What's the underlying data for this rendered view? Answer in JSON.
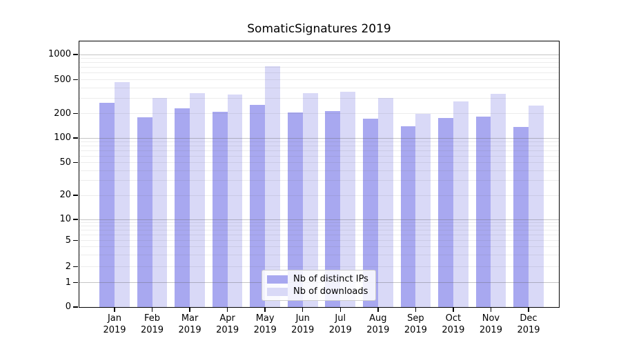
{
  "title": "SomaticSignatures 2019",
  "legend": {
    "ips_label": "Nb of distinct IPs",
    "downloads_label": "Nb of downloads"
  },
  "colors": {
    "ips": "#a8a8f0",
    "downloads": "#d9d9f7",
    "grid_major": "rgba(100,100,100,0.38)",
    "grid_minor": "rgba(100,100,100,0.12)",
    "axis": "#000000",
    "legend_border": "#cccccc"
  },
  "chart_data": {
    "type": "bar",
    "title": "SomaticSignatures 2019",
    "xlabel": "",
    "ylabel": "",
    "categories": [
      "Jan 2019",
      "Feb 2019",
      "Mar 2019",
      "Apr 2019",
      "May 2019",
      "Jun 2019",
      "Jul 2019",
      "Aug 2019",
      "Sep 2019",
      "Oct 2019",
      "Nov 2019",
      "Dec 2019"
    ],
    "series": [
      {
        "name": "Nb of distinct IPs",
        "values": [
          265,
          180,
          230,
          210,
          253,
          205,
          215,
          172,
          140,
          176,
          183,
          138
        ]
      },
      {
        "name": "Nb of downloads",
        "values": [
          465,
          305,
          350,
          335,
          730,
          350,
          360,
          305,
          200,
          275,
          340,
          250
        ]
      }
    ],
    "y_axis": {
      "scale": "log-like (compressed symlog segment below 10, linear 0-1)",
      "ticks": [
        0,
        1,
        2,
        5,
        10,
        20,
        50,
        100,
        200,
        500,
        1000
      ],
      "major_gridlines": [
        1,
        10,
        100,
        1000
      ],
      "minor_gridline_multiples": [
        2,
        3,
        4,
        5,
        6,
        7,
        8,
        9
      ],
      "ylim": [
        0,
        1400
      ]
    },
    "grid": true,
    "legend_position": "bottom-center"
  }
}
